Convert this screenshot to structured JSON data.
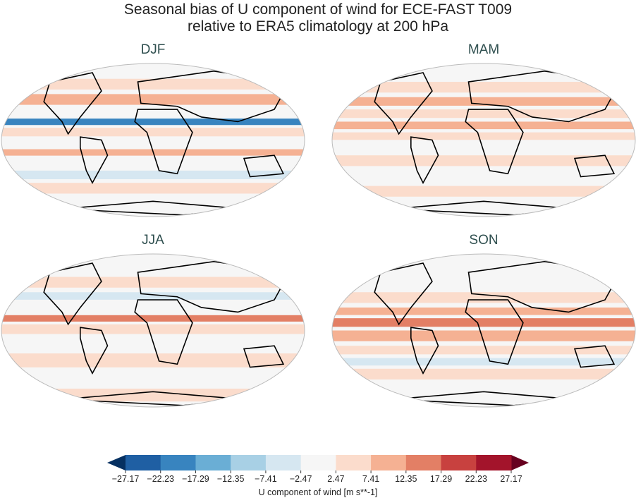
{
  "title_line1": "Seasonal bias of U component of wind for ECE-FAST T009",
  "title_line2": "relative to ERA5 climatology at 200 hPa",
  "panels": [
    {
      "label": "DJF"
    },
    {
      "label": "MAM"
    },
    {
      "label": "JJA"
    },
    {
      "label": "SON"
    }
  ],
  "colorbar": {
    "label": "U component of wind [m s**-1]",
    "ticks": [
      "−27.17",
      "−22.23",
      "−17.29",
      "−12.35",
      "−7.41",
      "−2.47",
      "2.47",
      "7.41",
      "12.35",
      "17.29",
      "22.23",
      "27.17"
    ],
    "colors": [
      "#1f5fa3",
      "#3884bf",
      "#6aaed5",
      "#a8d0e5",
      "#d6e7f1",
      "#f6f6f6",
      "#fbdccc",
      "#f5b193",
      "#e37f65",
      "#c8413f",
      "#a3142b"
    ],
    "under_color": "#053061",
    "over_color": "#67001f",
    "extend": "both"
  }
}
